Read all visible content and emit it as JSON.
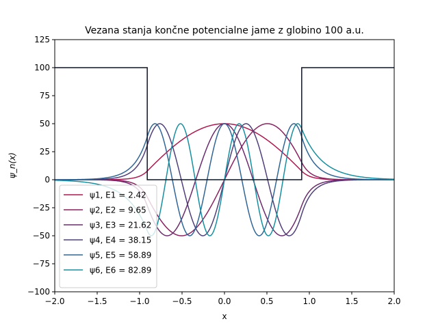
{
  "chart_data": {
    "type": "line",
    "title": "Vezana stanja končne potencialne jame z globino 100 a.u.",
    "xlabel": "x",
    "ylabel": "ψ_n(x)",
    "xlim": [
      -2.0,
      2.0
    ],
    "ylim": [
      -100,
      125
    ],
    "xticks": [
      -2.0,
      -1.5,
      -1.0,
      -0.5,
      0.0,
      0.5,
      1.0,
      1.5,
      2.0
    ],
    "xtick_labels": [
      "−2.0",
      "−1.5",
      "−1.0",
      "−0.5",
      "0.0",
      "0.5",
      "1.0",
      "1.5",
      "2.0"
    ],
    "yticks": [
      -100,
      -75,
      -50,
      -25,
      0,
      25,
      50,
      75,
      100,
      125
    ],
    "ytick_labels": [
      "−100",
      "−75",
      "−50",
      "−25",
      "0",
      "25",
      "50",
      "75",
      "100",
      "125"
    ],
    "grid": false,
    "legend_position": "lower-left",
    "potential": {
      "x": [
        -2.0,
        -0.91,
        -0.91,
        0.91,
        0.91,
        2.0
      ],
      "y": [
        100,
        100,
        0,
        0,
        100,
        100
      ],
      "color": "#0c1224"
    },
    "well_half_width": 0.91,
    "amplitude": 50,
    "series": [
      {
        "name": "ψ1, E1 = 2.42",
        "n": 1,
        "energy": 2.42,
        "color": "#b0164e"
      },
      {
        "name": "ψ2, E2 = 9.65",
        "n": 2,
        "energy": 9.65,
        "color": "#8a1f5f"
      },
      {
        "name": "ψ3, E3 = 21.62",
        "n": 3,
        "energy": 21.62,
        "color": "#6b2a6e"
      },
      {
        "name": "ψ4, E4 = 38.15",
        "n": 4,
        "energy": 38.15,
        "color": "#4f3e7a"
      },
      {
        "name": "ψ5, E5 = 58.89",
        "n": 5,
        "energy": 58.89,
        "color": "#2e6596"
      },
      {
        "name": "ψ6, E6 = 82.89",
        "n": 6,
        "energy": 82.89,
        "color": "#148fa0"
      }
    ]
  }
}
